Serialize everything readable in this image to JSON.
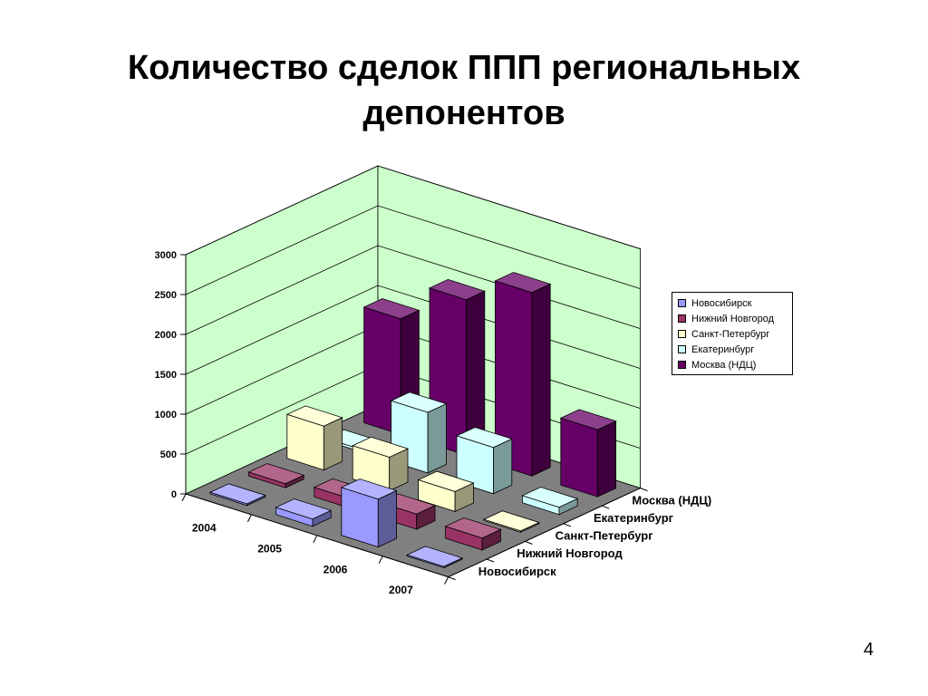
{
  "slide": {
    "title_line1": "Количество сделок ППП региональных",
    "title_line2": "депонентов",
    "page_number": "4"
  },
  "chart_data": {
    "type": "bar",
    "subtype": "3d-column",
    "categories": [
      "2004",
      "2005",
      "2006",
      "2007"
    ],
    "series": [
      {
        "name": "Новосибирск",
        "values": [
          20,
          90,
          600,
          0
        ],
        "color": "#9999FF"
      },
      {
        "name": "Нижний Новгород",
        "values": [
          50,
          120,
          190,
          150
        ],
        "color": "#993366"
      },
      {
        "name": "Санкт-Петербург",
        "values": [
          550,
          420,
          250,
          0
        ],
        "color": "#FFFFCC"
      },
      {
        "name": "Екатеринбург",
        "values": [
          30,
          760,
          580,
          90
        ],
        "color": "#CCFFFF"
      },
      {
        "name": "Москва (НДЦ)",
        "values": [
          1450,
          1950,
          2300,
          840
        ],
        "color": "#660066"
      }
    ],
    "ylim": [
      0,
      3000
    ],
    "yticks": [
      "0",
      "500",
      "1000",
      "1500",
      "2000",
      "2500",
      "3000"
    ],
    "depth_labels": [
      "Москва (НДЦ)",
      "Екатеринбург",
      "Санкт-Петербург",
      "Нижний Новгород",
      "Новосибирск"
    ],
    "grid": true,
    "legend_position": "right",
    "wall_color": "#CCFFCC",
    "floor_color": "#808080"
  }
}
